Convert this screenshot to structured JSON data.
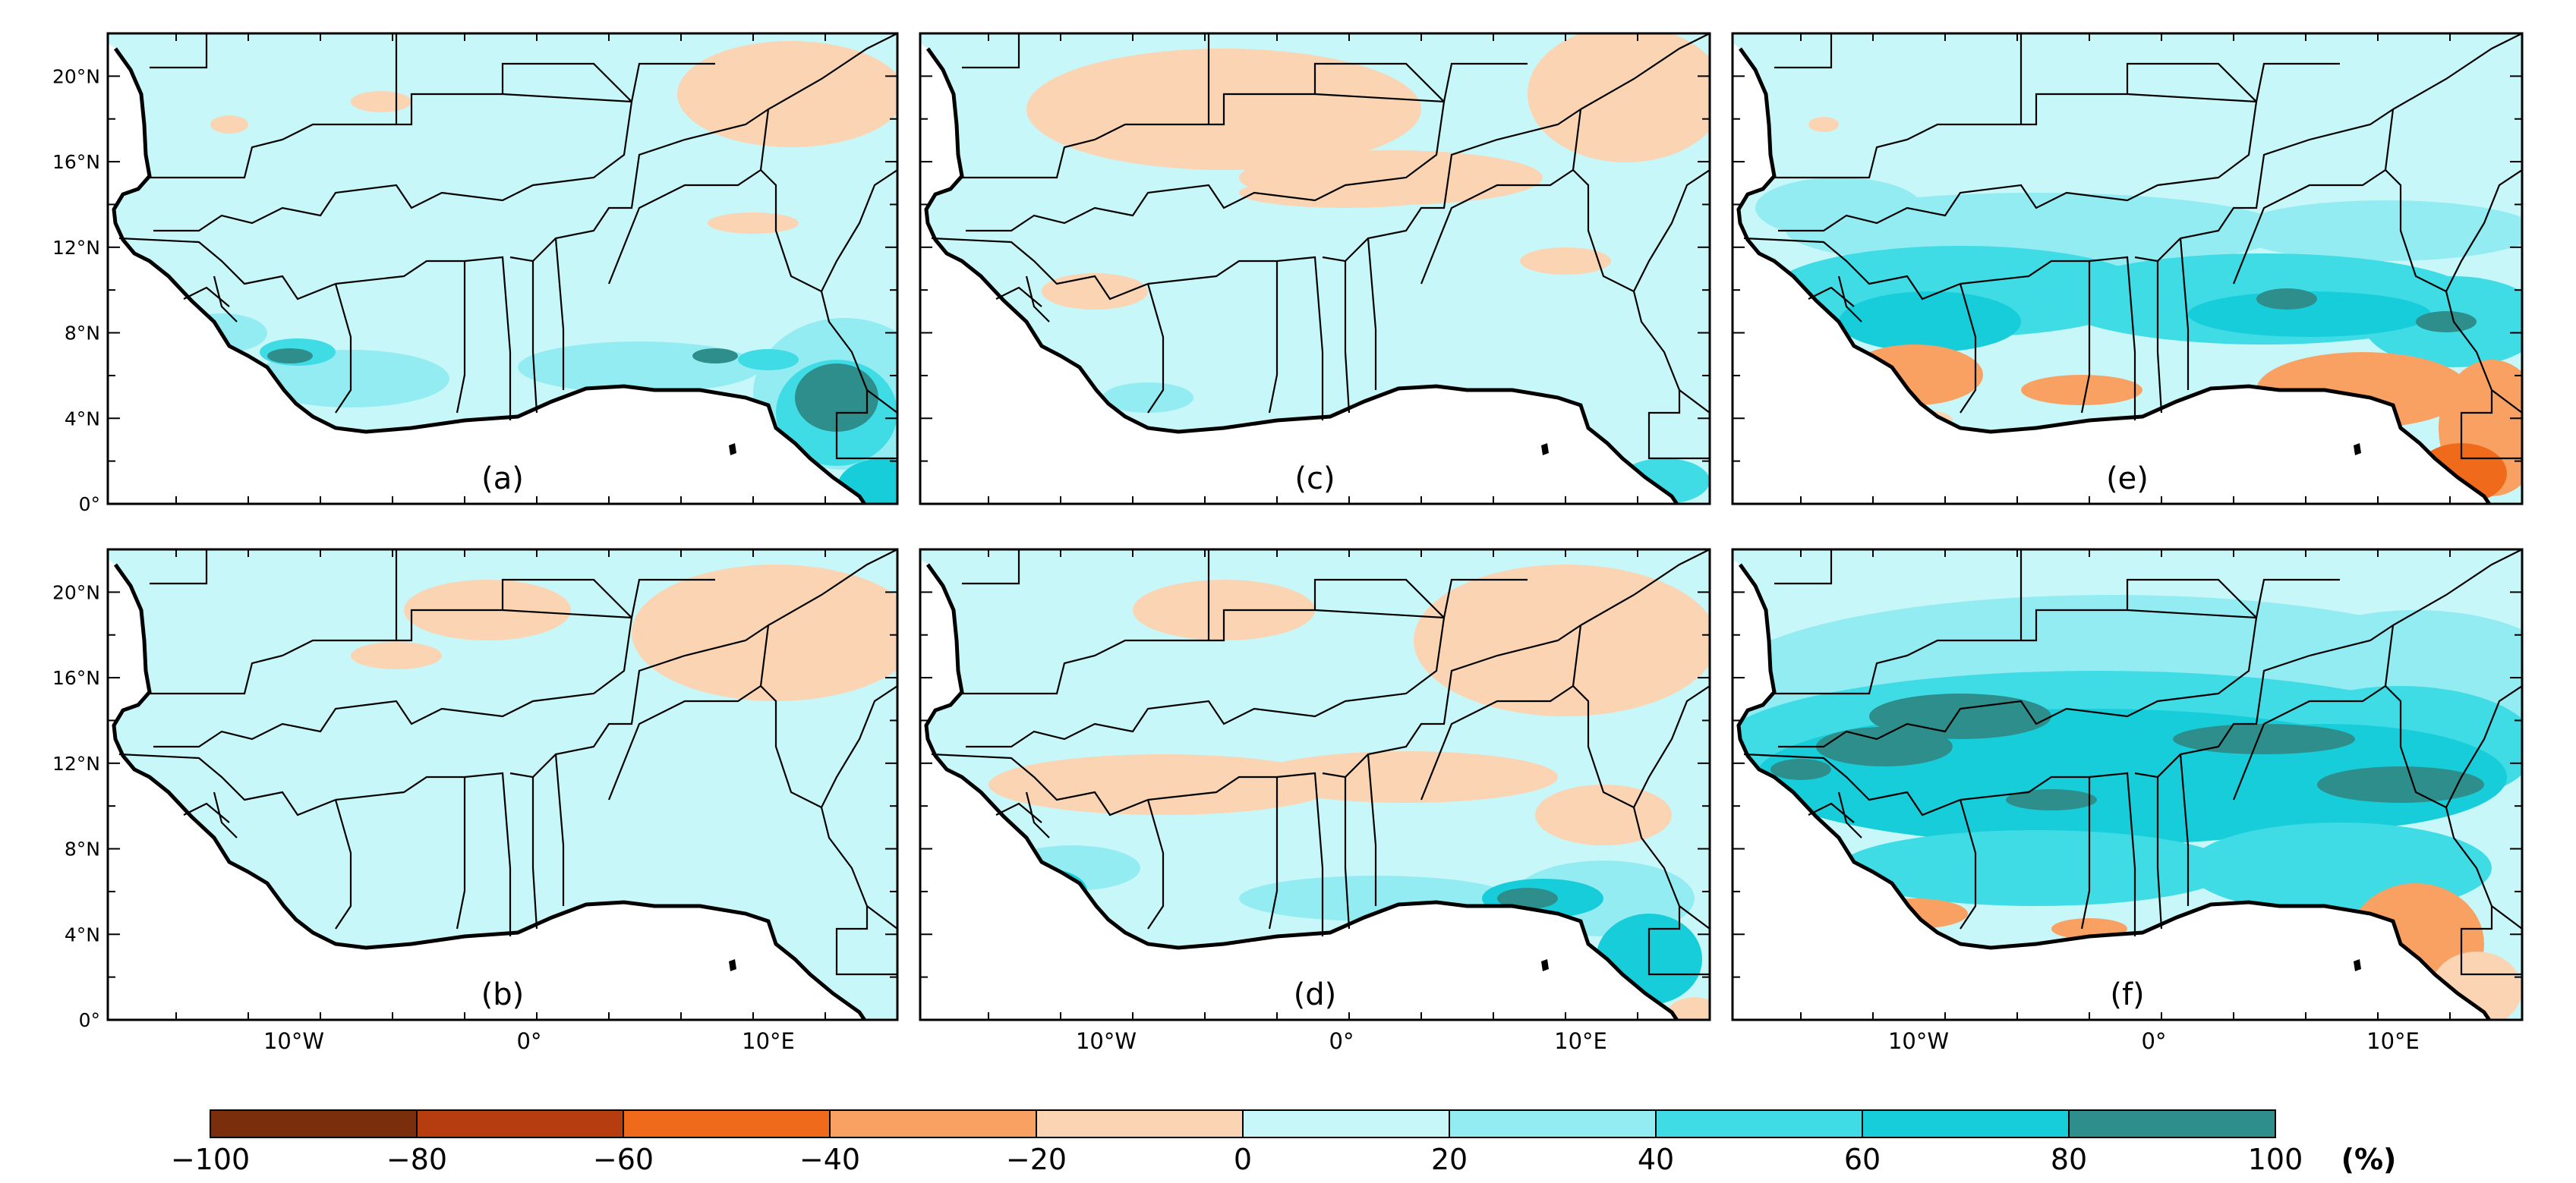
{
  "figure": {
    "panels": [
      {
        "label": "(a)",
        "pattern": "mild_wet_south"
      },
      {
        "label": "(c)",
        "pattern": "dry_patches"
      },
      {
        "label": "(e)",
        "pattern": "wet_north_dry_coast"
      },
      {
        "label": "(b)",
        "pattern": "mild_wet"
      },
      {
        "label": "(d)",
        "pattern": "dry_band_wet_coast"
      },
      {
        "label": "(f)",
        "pattern": "very_wet"
      }
    ],
    "lat_ticks": [
      "20°N",
      "16°N",
      "12°N",
      "8°N",
      "4°N",
      "0°"
    ],
    "lon_ticks": [
      "10°W",
      "0°",
      "10°E"
    ],
    "colorbar": {
      "ticks": [
        "−100",
        "−80",
        "−60",
        "−40",
        "−20",
        "0",
        "20",
        "40",
        "60",
        "80",
        "100"
      ],
      "colors": [
        "#7a2e0b",
        "#b53d0f",
        "#f06a1c",
        "#f8a162",
        "#fad4b3",
        "#c8f7f9",
        "#93ecf2",
        "#3fdce6",
        "#17cdd9",
        "#2d8e8c"
      ],
      "unit": "(%)"
    }
  },
  "chart_data": {
    "type": "heatmap",
    "title": "",
    "variable_unit": "%",
    "value_range": [
      -100,
      100
    ],
    "contour_levels": [
      -100,
      -80,
      -60,
      -40,
      -20,
      0,
      20,
      40,
      60,
      80,
      100
    ],
    "lat_range": [
      0,
      22
    ],
    "lon_range": [
      -18,
      16
    ],
    "panels": [
      "(a)",
      "(b)",
      "(c)",
      "(d)",
      "(e)",
      "(f)"
    ]
  }
}
